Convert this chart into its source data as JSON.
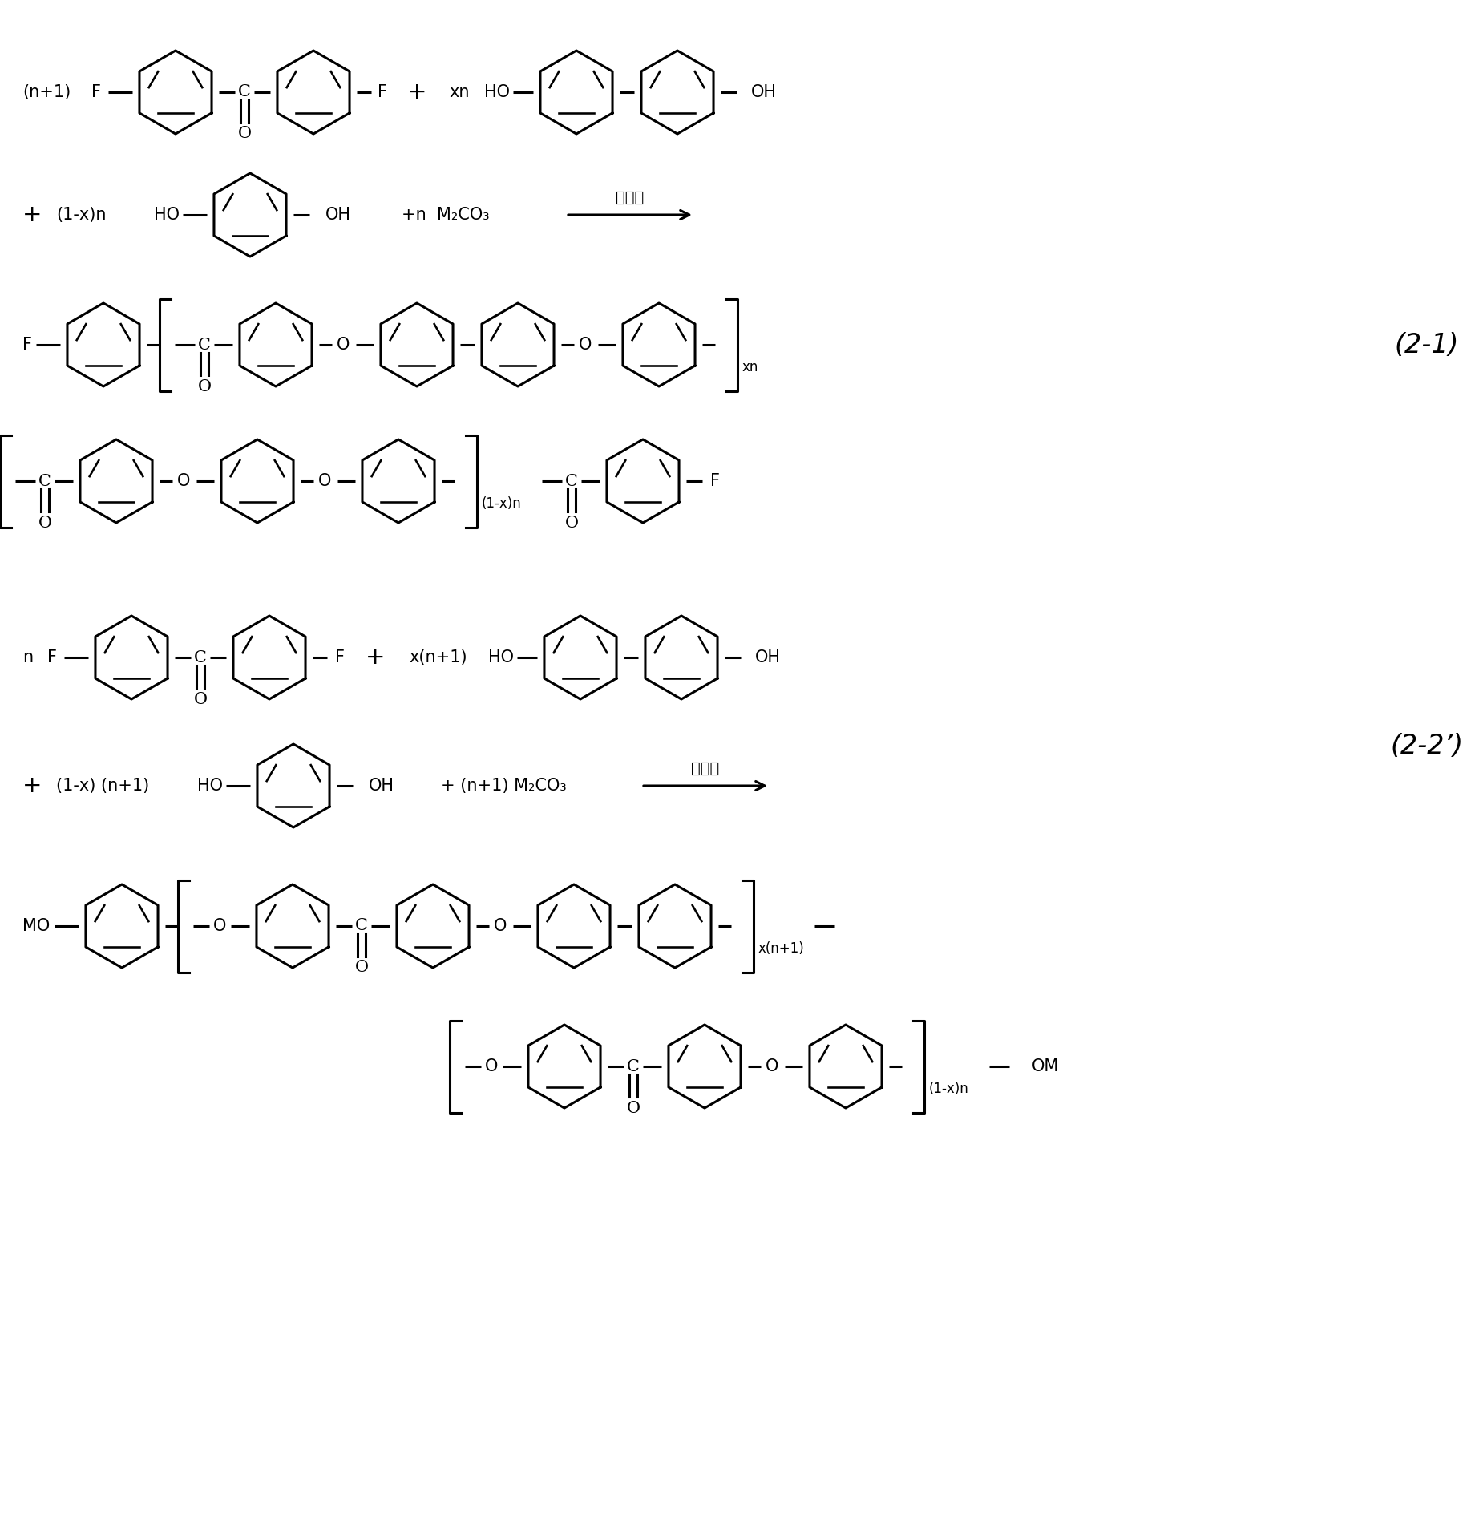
{
  "background_color": "#ffffff",
  "line_color": "#000000",
  "figure_width": 18.45,
  "figure_height": 18.87,
  "dpi": 100,
  "label_fontsize": 15,
  "eq_label_fontsize": 24,
  "chinese_text": "环丁硢",
  "eq1_label": "(2-1)",
  "eq2_label": "(2-2’)"
}
